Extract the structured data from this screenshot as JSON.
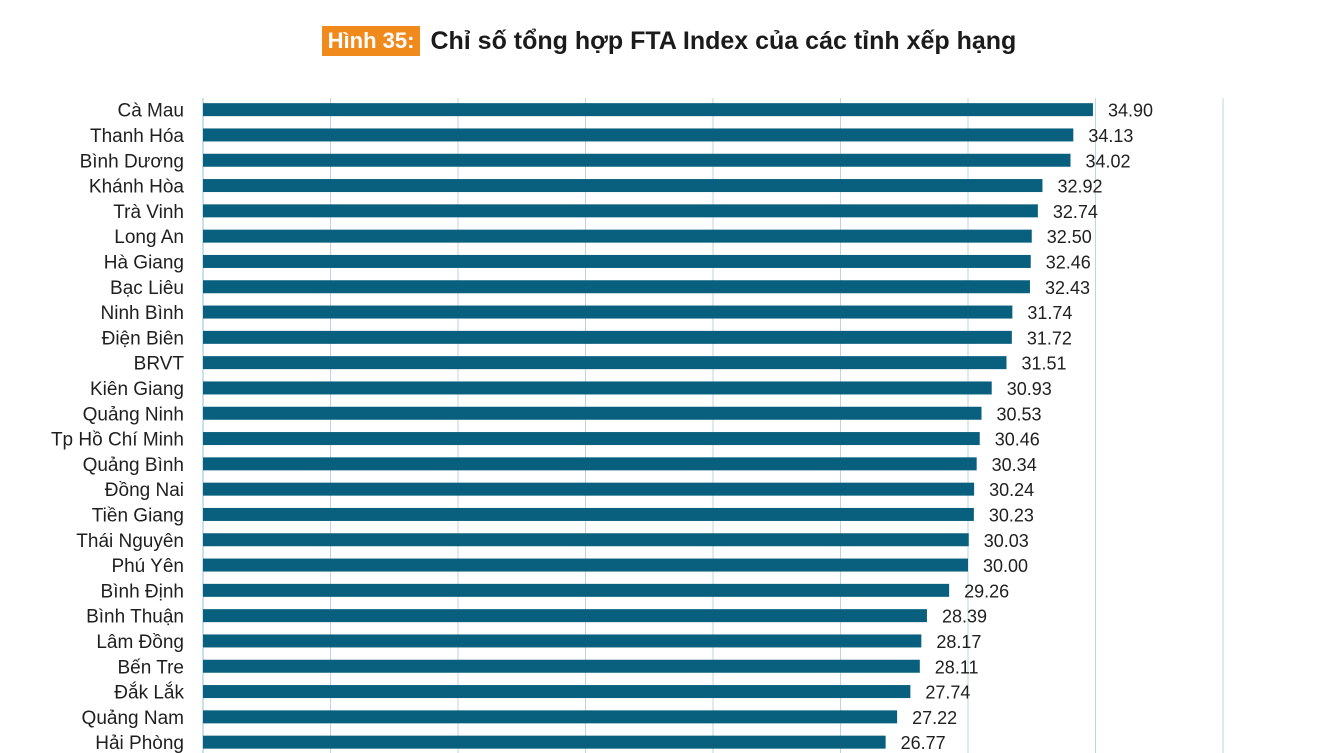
{
  "figure": {
    "label": "Hình 35:",
    "title": "Chỉ số tổng hợp FTA Index của các tỉnh xếp hạng"
  },
  "colors": {
    "bar": "#09607e",
    "grid": "#b9d6e6",
    "label_badge": "#f08a1c"
  },
  "chart_data": {
    "type": "bar",
    "orientation": "horizontal",
    "categories": [
      "Cà Mau",
      "Thanh Hóa",
      "Bình Dương",
      "Khánh Hòa",
      "Trà Vinh",
      "Long An",
      "Hà Giang",
      "Bạc Liêu",
      "Ninh Bình",
      "Điện Biên",
      "BRVT",
      "Kiên Giang",
      "Quảng Ninh",
      "Tp Hồ Chí Minh",
      "Quảng Bình",
      "Đồng Nai",
      "Tiền Giang",
      "Thái Nguyên",
      "Phú Yên",
      "Bình Định",
      "Bình Thuận",
      "Lâm Đồng",
      "Bến Tre",
      "Đắk Lắk",
      "Quảng Nam",
      "Hải Phòng"
    ],
    "values": [
      34.9,
      34.13,
      34.02,
      32.92,
      32.74,
      32.5,
      32.46,
      32.43,
      31.74,
      31.72,
      31.51,
      30.93,
      30.53,
      30.46,
      30.34,
      30.24,
      30.23,
      30.03,
      30.0,
      29.26,
      28.39,
      28.17,
      28.11,
      27.74,
      27.22,
      26.77
    ],
    "value_labels": [
      "34.90",
      "34.13",
      "34.02",
      "32.92",
      "32.74",
      "32.50",
      "32.46",
      "32.43",
      "31.74",
      "31.72",
      "31.51",
      "30.93",
      "30.53",
      "30.46",
      "30.34",
      "30.24",
      "30.23",
      "30.03",
      "30.00",
      "29.26",
      "28.39",
      "28.17",
      "28.11",
      "27.74",
      "27.22",
      "26.77"
    ],
    "xlim": [
      0,
      40
    ],
    "grid_step": 5,
    "grid": true,
    "title": "Chỉ số tổng hợp FTA Index của các tỉnh xếp hạng",
    "xlabel": "",
    "ylabel": ""
  }
}
